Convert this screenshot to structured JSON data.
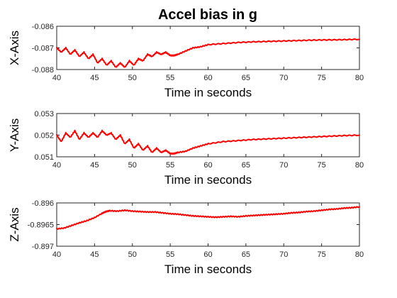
{
  "figure": {
    "title": "Accel bias in g"
  },
  "colors": {
    "series": "#ff0000",
    "axes": "#262626"
  },
  "chart_data": [
    {
      "type": "line",
      "xlabel": "Time in seconds",
      "ylabel": "X-Axis",
      "xlim": [
        40,
        80
      ],
      "ylim": [
        -0.088,
        -0.086
      ],
      "xticks": [
        40,
        45,
        50,
        55,
        60,
        65,
        70,
        75,
        80
      ],
      "yticks": [
        "-0.086",
        "-0.087",
        "-0.088"
      ],
      "ytick_values": [
        -0.086,
        -0.087,
        -0.088
      ],
      "grid": false,
      "series": [
        {
          "x": [
            40,
            40.6,
            41.2,
            41.8,
            42.4,
            43.0,
            43.6,
            44.2,
            44.8,
            45.4,
            46.0,
            46.6,
            47.2,
            47.8,
            48.4,
            49.0,
            49.6,
            50.2,
            50.8,
            51.4,
            52.0,
            52.6,
            53.2,
            53.8,
            54.4,
            55.0,
            55.5,
            56,
            57,
            58,
            59,
            60,
            62,
            64,
            66,
            68,
            70,
            72,
            74,
            76,
            78,
            80
          ],
          "y": [
            -0.087,
            -0.0872,
            -0.087,
            -0.0873,
            -0.0871,
            -0.0874,
            -0.0872,
            -0.0875,
            -0.0873,
            -0.0877,
            -0.0875,
            -0.0878,
            -0.0876,
            -0.0879,
            -0.0877,
            -0.0879,
            -0.0876,
            -0.0878,
            -0.0875,
            -0.0876,
            -0.0873,
            -0.0874,
            -0.0872,
            -0.0873,
            -0.0872,
            -0.08735,
            -0.08735,
            -0.0873,
            -0.08715,
            -0.087,
            -0.08695,
            -0.08685,
            -0.0868,
            -0.08675,
            -0.08672,
            -0.0867,
            -0.08668,
            -0.08666,
            -0.08664,
            -0.08663,
            -0.08662,
            -0.0866
          ]
        }
      ]
    },
    {
      "type": "line",
      "xlabel": "Time in seconds",
      "ylabel": "Y-Axis",
      "xlim": [
        40,
        80
      ],
      "ylim": [
        0.051,
        0.053
      ],
      "xticks": [
        40,
        45,
        50,
        55,
        60,
        65,
        70,
        75,
        80
      ],
      "yticks": [
        "0.053",
        "0.052",
        "0.051"
      ],
      "ytick_values": [
        0.053,
        0.052,
        0.051
      ],
      "grid": false,
      "series": [
        {
          "x": [
            40,
            40.6,
            41.2,
            41.8,
            42.4,
            43.0,
            43.6,
            44.2,
            44.8,
            45.4,
            46.0,
            46.6,
            47.2,
            47.8,
            48.4,
            49.0,
            49.6,
            50.2,
            50.8,
            51.4,
            52.0,
            52.6,
            53.2,
            53.8,
            54.4,
            55.0,
            55.5,
            56,
            57,
            58,
            59,
            60,
            62,
            64,
            66,
            68,
            70,
            72,
            74,
            76,
            78,
            80
          ],
          "y": [
            0.052,
            0.0517,
            0.0521,
            0.0519,
            0.0522,
            0.0518,
            0.0521,
            0.0519,
            0.0521,
            0.0519,
            0.0522,
            0.052,
            0.0521,
            0.0518,
            0.052,
            0.0516,
            0.0518,
            0.0514,
            0.0516,
            0.0513,
            0.0515,
            0.0512,
            0.0514,
            0.0512,
            0.0513,
            0.05115,
            0.05115,
            0.0512,
            0.05125,
            0.0514,
            0.0515,
            0.0516,
            0.0517,
            0.05175,
            0.0518,
            0.05183,
            0.05186,
            0.05189,
            0.05192,
            0.05195,
            0.05198,
            0.052
          ]
        }
      ]
    },
    {
      "type": "line",
      "xlabel": "Time in seconds",
      "ylabel": "Z-Axis",
      "xlim": [
        40,
        80
      ],
      "ylim": [
        -0.897,
        -0.896
      ],
      "xticks": [
        40,
        45,
        50,
        55,
        60,
        65,
        70,
        75,
        80
      ],
      "yticks": [
        "-0.896",
        "-0.8965",
        "-0.897"
      ],
      "ytick_values": [
        -0.896,
        -0.8965,
        -0.897
      ],
      "grid": false,
      "series": [
        {
          "x": [
            40,
            41,
            42,
            43,
            44,
            45,
            46,
            46.5,
            47,
            48,
            49,
            50,
            51,
            52,
            53,
            54,
            55,
            56,
            57,
            58,
            59,
            60,
            61,
            62,
            63,
            64,
            65,
            66,
            67,
            68,
            69,
            70,
            71,
            72,
            73,
            74,
            75,
            76,
            77,
            78,
            79,
            80
          ],
          "y": [
            -0.8966,
            -0.89658,
            -0.89652,
            -0.89646,
            -0.89641,
            -0.89634,
            -0.89624,
            -0.8962,
            -0.89618,
            -0.89619,
            -0.89617,
            -0.89619,
            -0.8962,
            -0.89621,
            -0.89621,
            -0.89623,
            -0.89625,
            -0.89626,
            -0.89628,
            -0.8963,
            -0.89631,
            -0.89632,
            -0.89633,
            -0.89632,
            -0.89631,
            -0.89632,
            -0.8963,
            -0.89629,
            -0.89628,
            -0.89627,
            -0.89626,
            -0.89625,
            -0.89623,
            -0.89622,
            -0.8962,
            -0.89619,
            -0.89617,
            -0.89615,
            -0.89614,
            -0.89612,
            -0.89611,
            -0.89609
          ]
        }
      ]
    }
  ]
}
